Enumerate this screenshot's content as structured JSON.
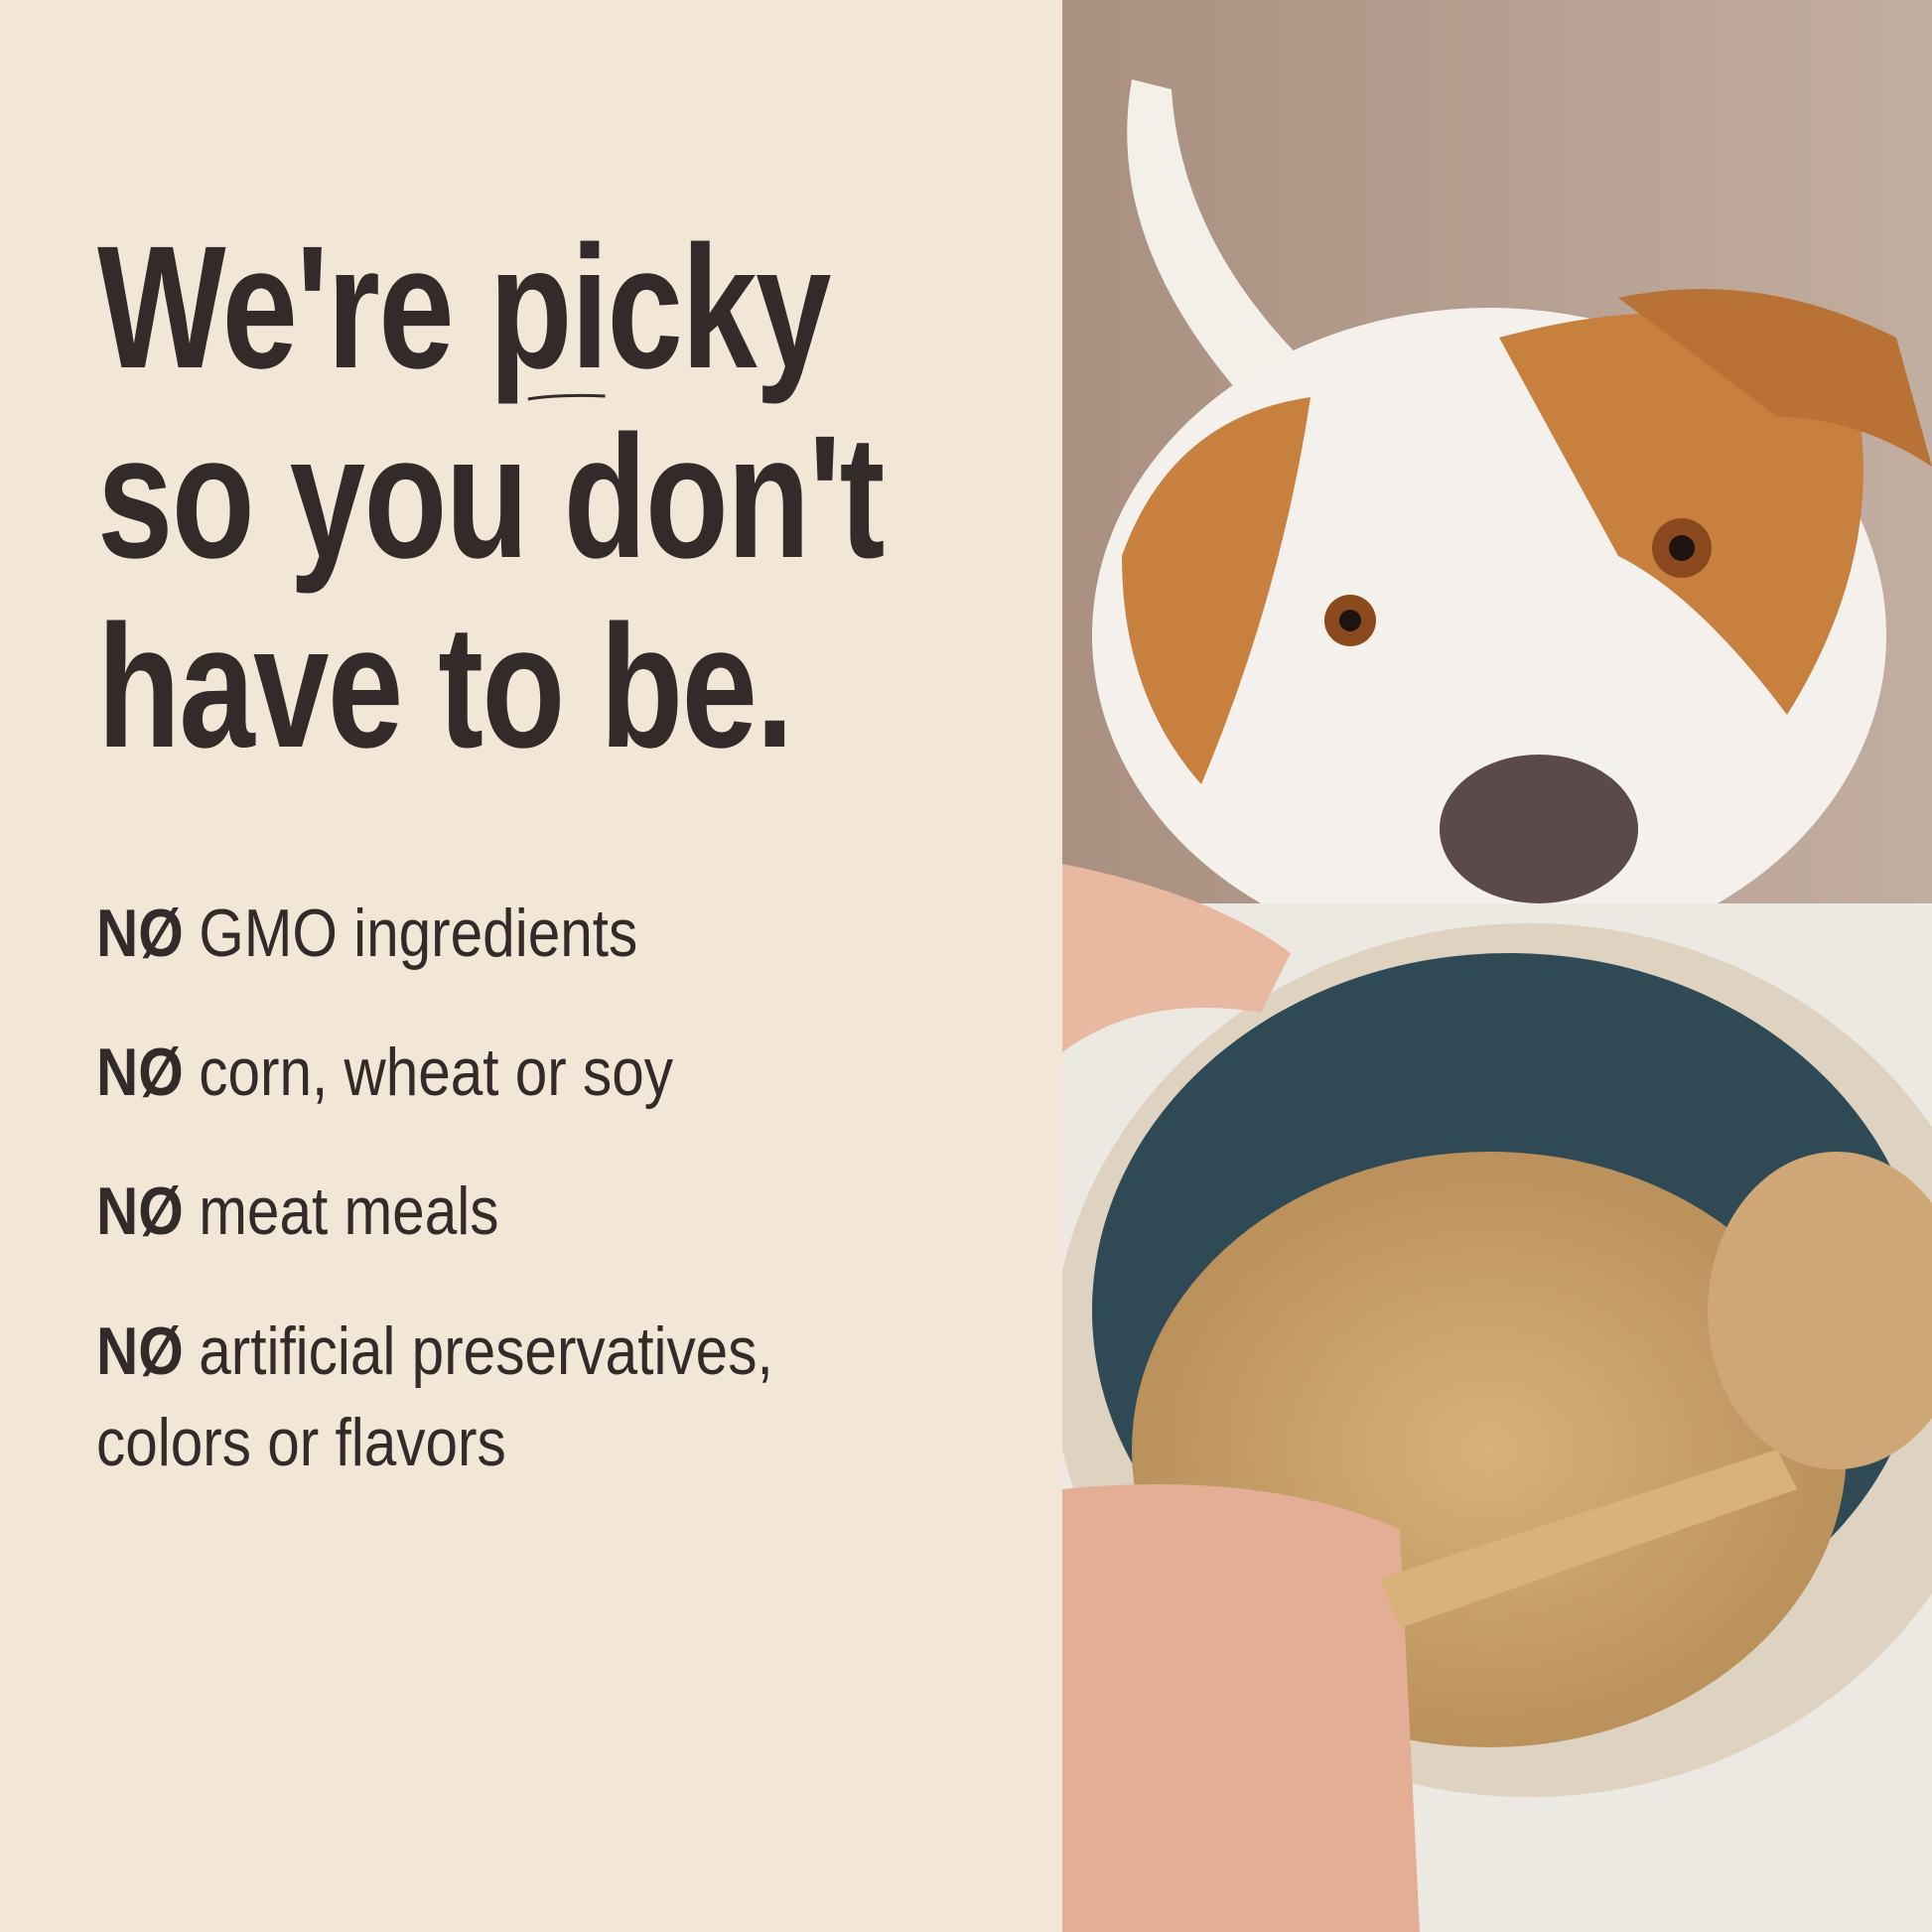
{
  "headline": {
    "line1_before": "We're ",
    "line1_emphasis": "picky",
    "line2": "so you don't",
    "line3": "have to be."
  },
  "claims": [
    {
      "prefix": "NØ",
      "text": "GMO ingredients"
    },
    {
      "prefix": "NØ",
      "text": "corn, wheat or soy"
    },
    {
      "prefix": "NØ",
      "text": "meat meals"
    },
    {
      "prefix": "NØ",
      "text": "artificial preservatives, colors or flavors"
    }
  ],
  "colors": {
    "background": "#f2e7d7",
    "text": "#332b29",
    "bowl": "#2f4a55",
    "kibble": "#c9a06a",
    "dog_fur": "#c8803f"
  }
}
